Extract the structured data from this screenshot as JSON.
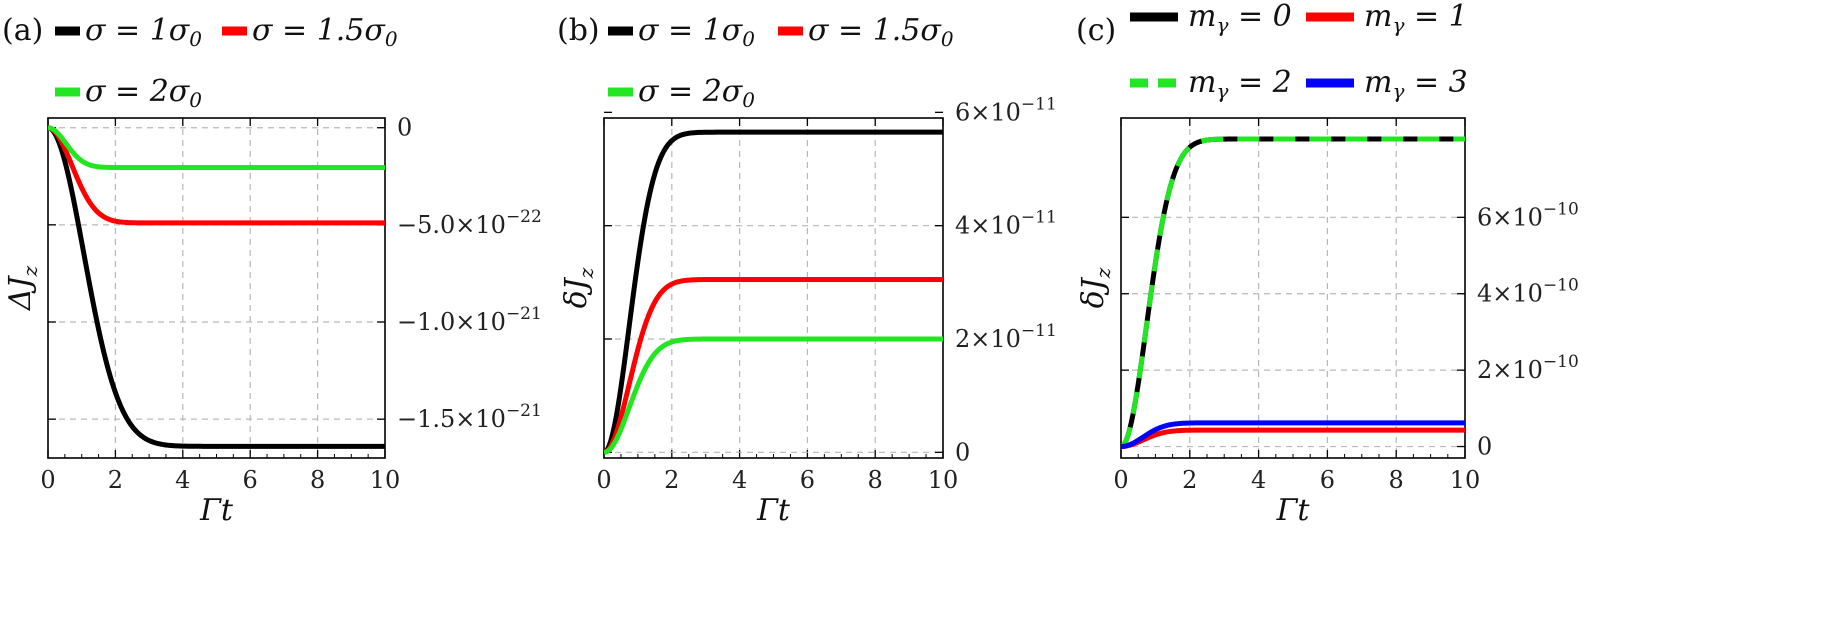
{
  "chart_data": [
    {
      "type": "line",
      "panel_label": "(a)",
      "xlabel": "Γt",
      "ylabel": "ΔJ_z",
      "xlim": [
        0,
        10
      ],
      "ylim": [
        -1.7e-21,
        5e-23
      ],
      "x_ticks": [
        "0",
        "2",
        "4",
        "6",
        "8",
        "10"
      ],
      "y_axis_side": "right",
      "y_ticks": [
        {
          "value": 0,
          "label": "0"
        },
        {
          "value": -5e-22,
          "label": "−5.0×10",
          "exp": "−22"
        },
        {
          "value": -1e-21,
          "label": "−1.0×10",
          "exp": "−21"
        },
        {
          "value": -1.5e-21,
          "label": "−1.5×10",
          "exp": "−21"
        }
      ],
      "grid": true,
      "legend_position": "top",
      "series": [
        {
          "name": "σ = 1σ",
          "name_sub": "0",
          "color": "#000000",
          "final": -1.64e-21,
          "tau": 1.5
        },
        {
          "name": "σ = 1.5σ",
          "name_sub": "0",
          "color": "#ff0000",
          "final": -4.9e-22,
          "tau": 1.0
        },
        {
          "name": "σ = 2σ",
          "name_sub": "0",
          "color": "#22e622",
          "final": -2.05e-22,
          "tau": 0.75
        }
      ]
    },
    {
      "type": "line",
      "panel_label": "(b)",
      "xlabel": "Γt",
      "ylabel": "δJ_z",
      "xlim": [
        0,
        10
      ],
      "ylim": [
        -1e-12,
        5.9e-11
      ],
      "x_ticks": [
        "0",
        "2",
        "4",
        "6",
        "8",
        "10"
      ],
      "y_axis_side": "right",
      "y_ticks": [
        {
          "value": 0,
          "label": "0"
        },
        {
          "value": 2e-11,
          "label": "2×10",
          "exp": "−11"
        },
        {
          "value": 4e-11,
          "label": "4×10",
          "exp": "−11"
        },
        {
          "value": 6e-11,
          "label": "6×10",
          "exp": "−11"
        }
      ],
      "grid": true,
      "legend_position": "top",
      "series": [
        {
          "name": "σ = 1σ",
          "name_sub": "0",
          "color": "#000000",
          "final": 5.65e-11,
          "tau": 1.05
        },
        {
          "name": "σ = 1.5σ",
          "name_sub": "0",
          "color": "#ff0000",
          "final": 3.05e-11,
          "tau": 1.05
        },
        {
          "name": "σ = 2σ",
          "name_sub": "0",
          "color": "#22e622",
          "final": 2e-11,
          "tau": 1.05
        }
      ]
    },
    {
      "type": "line",
      "panel_label": "(c)",
      "xlabel": "Γt",
      "ylabel": "δJ_z",
      "xlim": [
        0,
        10
      ],
      "ylim": [
        -3e-11,
        8.6e-10
      ],
      "x_ticks": [
        "0",
        "2",
        "4",
        "6",
        "8",
        "10"
      ],
      "y_axis_side": "right",
      "y_ticks": [
        {
          "value": 0,
          "label": "0"
        },
        {
          "value": 2e-10,
          "label": "2×10",
          "exp": "−10"
        },
        {
          "value": 4e-10,
          "label": "4×10",
          "exp": "−10"
        },
        {
          "value": 6e-10,
          "label": "6×10",
          "exp": "−10"
        }
      ],
      "grid": true,
      "legend_position": "top",
      "series": [
        {
          "name": "m",
          "name_sub": "γ",
          "name_rest": " = 0",
          "color": "#000000",
          "final": 8.05e-10,
          "tau": 1.05,
          "dashed": false
        },
        {
          "name": "m",
          "name_sub": "γ",
          "name_rest": " = 1",
          "color": "#ff0000",
          "final": 4.3e-11,
          "tau": 0.9,
          "dashed": false
        },
        {
          "name": "m",
          "name_sub": "γ",
          "name_rest": " = 2",
          "color": "#22e622",
          "final": 8.05e-10,
          "tau": 1.05,
          "dashed": true
        },
        {
          "name": "m",
          "name_sub": "γ",
          "name_rest": " = 3",
          "color": "#0000ff",
          "final": 6.2e-11,
          "tau": 0.9,
          "dashed": false
        }
      ]
    }
  ]
}
